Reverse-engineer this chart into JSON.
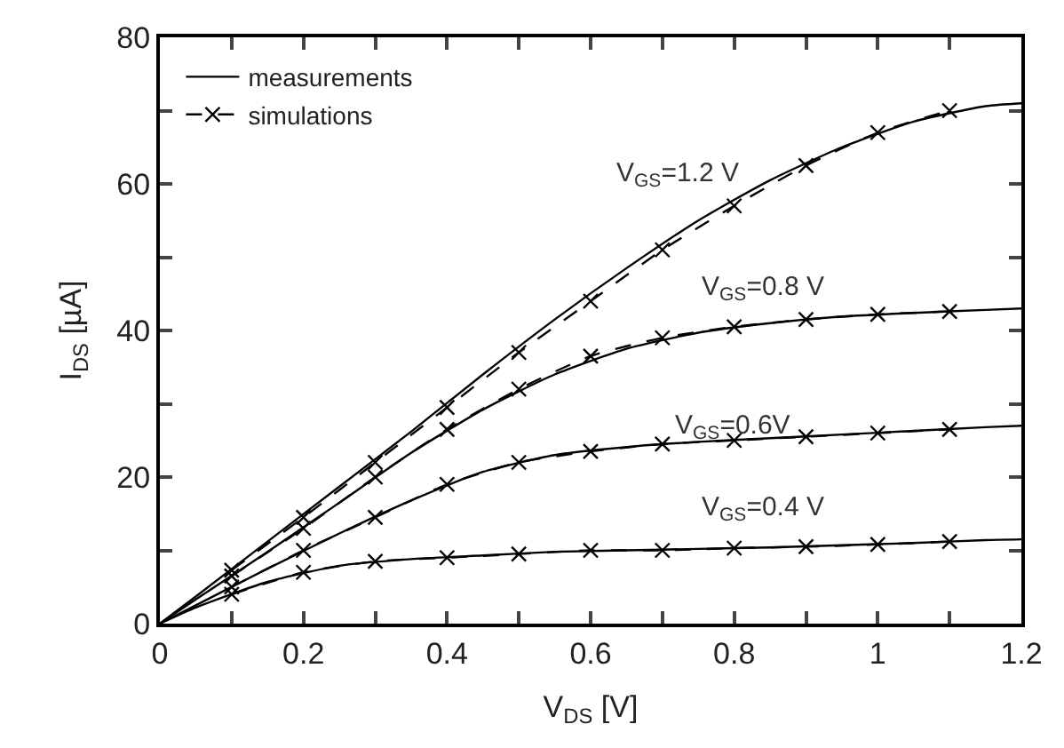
{
  "chart_data": {
    "type": "line",
    "xlabel": "V$_{DS}$ [V]",
    "ylabel": "I$_{DS}$ [µA]",
    "x": [
      0,
      0.05,
      0.15,
      0.25,
      0.35,
      0.45,
      0.55,
      0.65,
      0.75,
      0.85,
      0.95,
      1.05,
      1.15,
      1.2
    ],
    "series": [
      {
        "name": "measurements",
        "color": "#000000",
        "line_style": "solid",
        "marker": "none",
        "values": [
          0,
          3.7,
          11.2,
          18.7,
          26.2,
          34,
          41.5,
          48.5,
          55,
          60.5,
          65,
          68.5,
          70.6,
          71
        ]
      },
      {
        "color": "#000000",
        "line_style": "solid",
        "marker": "none",
        "values": [
          0,
          3.3,
          9.8,
          16.5,
          23.3,
          29.2,
          34,
          37.5,
          39.7,
          41,
          41.9,
          42.4,
          42.8,
          43
        ]
      },
      {
        "color": "#000000",
        "line_style": "solid",
        "marker": "none",
        "values": [
          0,
          2.5,
          7.5,
          12.3,
          16.8,
          20.7,
          23,
          24.1,
          24.8,
          25.3,
          25.8,
          26.3,
          26.8,
          27
        ]
      },
      {
        "color": "#000000",
        "line_style": "solid",
        "marker": "none",
        "values": [
          0,
          2.2,
          5.7,
          7.9,
          8.8,
          9.3,
          9.8,
          10,
          10.2,
          10.4,
          10.7,
          11,
          11.4,
          11.5
        ]
      },
      {
        "name": "simulations",
        "color": "#000000",
        "line_style": "dashed",
        "marker": "cross",
        "x": [
          0.1,
          0.2,
          0.3,
          0.4,
          0.5,
          0.6,
          0.7,
          0.8,
          0.9,
          1.0,
          1.1
        ],
        "values": [
          7.3,
          14.5,
          22,
          29.5,
          37,
          44,
          51,
          57,
          62.5,
          67,
          70
        ]
      },
      {
        "color": "#000000",
        "line_style": "dashed",
        "marker": "cross",
        "x": [
          0.1,
          0.2,
          0.3,
          0.4,
          0.5,
          0.6,
          0.7,
          0.8,
          0.9,
          1.0,
          1.1
        ],
        "values": [
          6.5,
          13,
          20,
          26.5,
          32,
          36.5,
          39,
          40.5,
          41.5,
          42.2,
          42.6
        ]
      },
      {
        "color": "#000000",
        "line_style": "dashed",
        "marker": "cross",
        "x": [
          0.1,
          0.2,
          0.3,
          0.4,
          0.5,
          0.6,
          0.7,
          0.8,
          0.9,
          1.0,
          1.1
        ],
        "values": [
          5,
          10,
          14.5,
          19,
          22,
          23.5,
          24.5,
          25,
          25.5,
          26,
          26.5
        ]
      },
      {
        "color": "#000000",
        "line_style": "dashed",
        "marker": "cross",
        "x": [
          0.1,
          0.2,
          0.3,
          0.4,
          0.5,
          0.6,
          0.7,
          0.8,
          0.9,
          1.0,
          1.1
        ],
        "values": [
          4,
          7,
          8.5,
          9,
          9.5,
          10,
          10,
          10.3,
          10.5,
          10.8,
          11.2
        ]
      }
    ],
    "annotations": [
      "V$_{GS}$=1.2 V",
      "V$_{GS}$=0.8 V",
      "V$_{GS}$=0.6V",
      "V$_{GS}$=0.4 V"
    ],
    "xlim": [
      0,
      1.2
    ],
    "xticks": [
      0,
      {
        "value": 0.1,
        "label": null
      },
      0.2,
      {
        "value": 0.3,
        "label": null
      },
      0.4,
      {
        "value": 0.5,
        "label": null
      },
      0.6,
      {
        "value": 0.7,
        "label": null
      },
      0.8,
      {
        "value": 0.9,
        "label": null
      },
      1,
      {
        "value": 1.1,
        "label": null
      },
      1.2
    ],
    "ylim": [
      0,
      80
    ],
    "yticks": [
      0,
      {
        "value": 10,
        "label": null
      },
      20,
      {
        "value": 30,
        "label": null
      },
      40,
      {
        "value": 50,
        "label": null
      },
      60,
      {
        "value": 70,
        "label": null
      },
      80
    ],
    "legend": "top left"
  }
}
